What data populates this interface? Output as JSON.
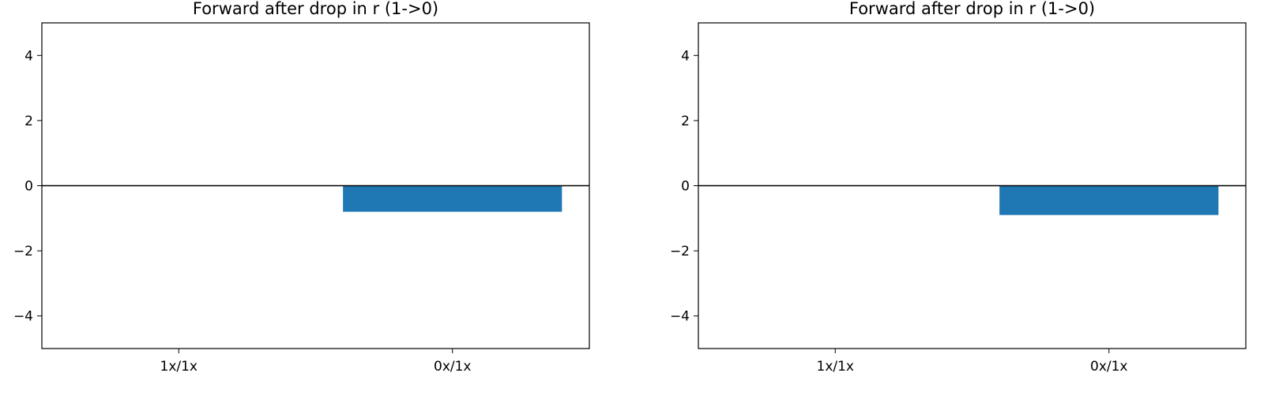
{
  "chart_data": [
    {
      "type": "bar",
      "title": "Forward after drop in r (1->0)",
      "xlabel": "",
      "ylabel": "",
      "categories": [
        "1x/1x",
        "0x/1x"
      ],
      "values": [
        0.0,
        -0.8
      ],
      "ylim": [
        -5,
        5
      ],
      "yticks": [
        4,
        2,
        0,
        -2,
        -4
      ],
      "ytick_labels": [
        "4",
        "2",
        "0",
        "−2",
        "−4"
      ],
      "zero_line": true,
      "grid": false,
      "legend": "none",
      "bar_color": "#1f77b4"
    },
    {
      "type": "bar",
      "title": "Forward after drop in r (1->0)",
      "xlabel": "",
      "ylabel": "",
      "categories": [
        "1x/1x",
        "0x/1x"
      ],
      "values": [
        0.0,
        -0.9
      ],
      "ylim": [
        -5,
        5
      ],
      "yticks": [
        4,
        2,
        0,
        -2,
        -4
      ],
      "ytick_labels": [
        "4",
        "2",
        "0",
        "−2",
        "−4"
      ],
      "zero_line": true,
      "grid": false,
      "legend": "none",
      "bar_color": "#1f77b4"
    }
  ]
}
